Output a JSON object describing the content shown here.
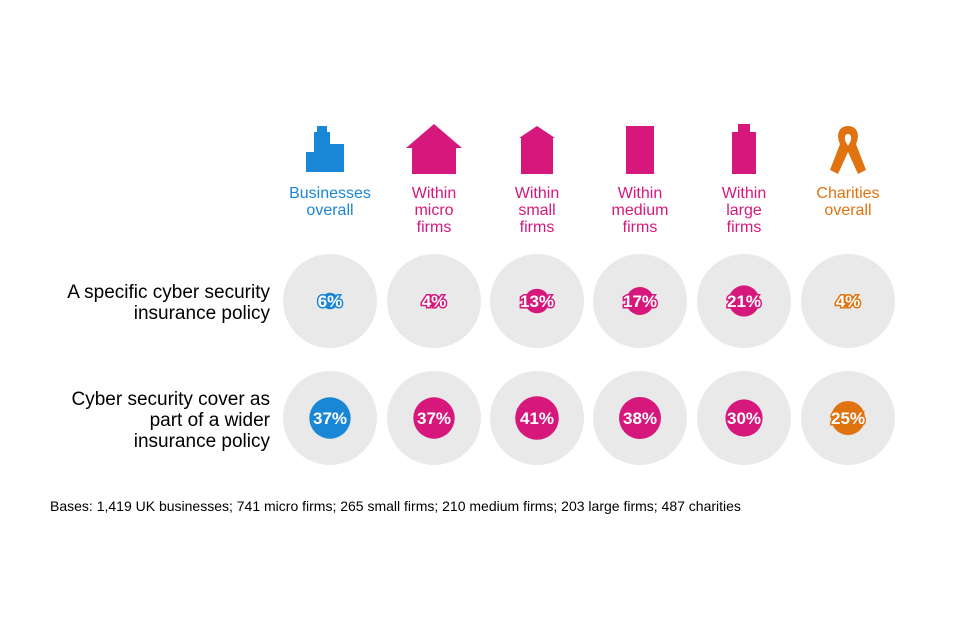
{
  "colors": {
    "blue": "#1a86d6",
    "magenta": "#d6187d",
    "orange": "#e07310",
    "circle_bg": "#e9e9e9"
  },
  "chart_data": {
    "type": "table",
    "categories": [
      {
        "label": "Businesses\noverall",
        "color": "#1a86d6",
        "icon": "office-buildings-icon"
      },
      {
        "label": "Within\nmicro\nfirms",
        "color": "#d6187d",
        "icon": "house-icon"
      },
      {
        "label": "Within\nsmall\nfirms",
        "color": "#d6187d",
        "icon": "small-building-icon"
      },
      {
        "label": "Within\nmedium\nfirms",
        "color": "#d6187d",
        "icon": "medium-building-icon"
      },
      {
        "label": "Within\nlarge\nfirms",
        "color": "#d6187d",
        "icon": "tower-building-icon"
      },
      {
        "label": "Charities\noverall",
        "color": "#e07310",
        "icon": "awareness-ribbon-icon"
      }
    ],
    "series": [
      {
        "name": "A specific cyber security\ninsurance policy",
        "values": [
          6,
          4,
          13,
          17,
          21,
          4
        ]
      },
      {
        "name": "Cyber security cover as\npart of a wider\ninsurance policy",
        "values": [
          37,
          37,
          41,
          38,
          30,
          25
        ]
      }
    ],
    "value_suffix": "%",
    "max_value": 100
  },
  "footnote": "Bases: 1,419 UK businesses; 741 micro firms; 265 small firms; 210 medium firms; 203 large firms; 487 charities"
}
